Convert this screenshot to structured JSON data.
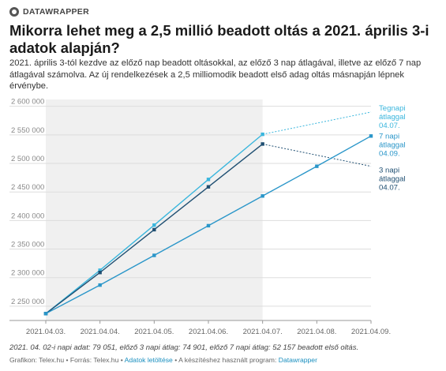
{
  "brand": {
    "name": "DATAWRAPPER",
    "icon": "datawrapper-logo-icon"
  },
  "title": "Mikorra lehet meg a 2,5 millió beadott oltás a 2021. április 3-i adatok alapján?",
  "description": "2021. április 3-tól kezdve az előző nap beadott oltásokkal, az előző 3 nap átlagával, illetve az előző 7 nap átlagával számolva. Az új rendelkezések a 2,5 milliomodik beadott első adag oltás másnapján lépnek érvénybe.",
  "colors": {
    "tegnapi": "#3ab6dd",
    "harom_napi": "#1f4f72",
    "het_napi": "#2a96c9",
    "highlight_band": "#f0f0f0",
    "grid": "#dddddd"
  },
  "chart_data": {
    "type": "line",
    "x": [
      "2021.04.03.",
      "2021.04.04.",
      "2021.04.05.",
      "2021.04.06.",
      "2021.04.07.",
      "2021.04.08.",
      "2021.04.09."
    ],
    "ylim": [
      2225000,
      2612000
    ],
    "yticks": [
      2250000,
      2300000,
      2350000,
      2400000,
      2450000,
      2500000,
      2550000,
      2600000
    ],
    "ytick_labels": [
      "2 250 000",
      "2 300 000",
      "2 350 000",
      "2 400 000",
      "2 450 000",
      "2 500 000",
      "2 550 000",
      "2 600 000"
    ],
    "highlight_range": [
      "2021.04.03.",
      "2021.04.07."
    ],
    "series": [
      {
        "key": "tegnapi",
        "values": [
          2237000,
          2313000,
          2392000,
          2472000,
          2551000,
          null,
          null
        ],
        "projection_to": 2590000,
        "label_lines": [
          "Tegnapi",
          "átlaggal",
          "04.07."
        ]
      },
      {
        "key": "harom_napi",
        "values": [
          2237000,
          2309000,
          2384000,
          2459000,
          2534000,
          null,
          null
        ],
        "projection_to": 2495000,
        "label_lines": [
          "3 napi",
          "átlaggal",
          "04.07."
        ]
      },
      {
        "key": "het_napi",
        "values": [
          2237000,
          2287000,
          2339000,
          2391000,
          2443000,
          2495000,
          2548000
        ],
        "projection_to": null,
        "label_lines": [
          "7 napi",
          "átlaggal",
          "04.09."
        ]
      }
    ]
  },
  "notes": "2021. 04. 02-i napi adat: 79 051, előző 3 napi átlag: 74 901, előző 7 napi átlag: 52 157 beadott első oltás.",
  "credits": {
    "prefix": "Grafikon: Telex.hu • Forrás: Telex.hu •",
    "download_link": "Adatok letöltése",
    "middle": "• A készítéshez használt program:",
    "tool_link": "Datawrapper"
  }
}
